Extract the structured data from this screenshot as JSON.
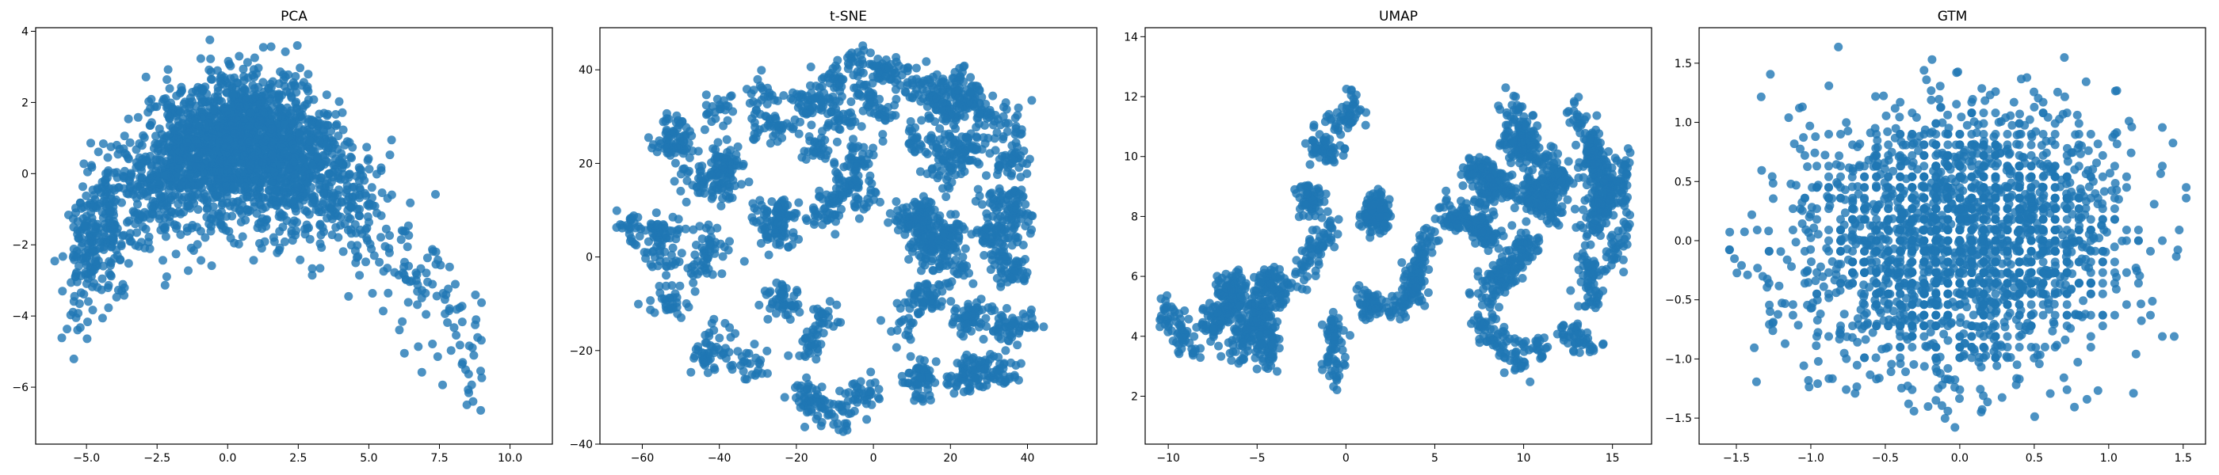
{
  "figure": {
    "background": "#ffffff"
  },
  "chart_data": [
    {
      "type": "scatter",
      "title": "PCA",
      "xlabel": "",
      "ylabel": "",
      "xlim": [
        -6.8,
        11.5
      ],
      "ylim": [
        -7.6,
        4.1
      ],
      "xticks": [
        -5.0,
        -2.5,
        0.0,
        2.5,
        5.0,
        7.5,
        10.0
      ],
      "xtick_labels": [
        "−5.0",
        "−2.5",
        "0.0",
        "2.5",
        "5.0",
        "7.5",
        "10.0"
      ],
      "yticks": [
        -6,
        -4,
        -2,
        0,
        2,
        4
      ],
      "ytick_labels": [
        "−6",
        "−4",
        "−2",
        "0",
        "2",
        "4"
      ],
      "grid": false,
      "series": [
        {
          "color": "#1f77b4",
          "n_points": 2500,
          "distribution": "arc"
        }
      ]
    },
    {
      "type": "scatter",
      "title": "t-SNE",
      "xlabel": "",
      "ylabel": "",
      "xlim": [
        -71,
        58
      ],
      "ylim": [
        -40,
        49
      ],
      "xticks": [
        -60,
        -40,
        -20,
        0,
        20,
        40
      ],
      "xtick_labels": [
        "−60",
        "−40",
        "−20",
        "0",
        "20",
        "40"
      ],
      "yticks": [
        -40,
        -20,
        0,
        20,
        40
      ],
      "ytick_labels": [
        "−40",
        "−20",
        "0",
        "20",
        "40"
      ],
      "grid": false,
      "series": [
        {
          "color": "#1f77b4",
          "n_points": 2500,
          "distribution": "clusters"
        }
      ]
    },
    {
      "type": "scatter",
      "title": "UMAP",
      "xlabel": "",
      "ylabel": "",
      "xlim": [
        -11.3,
        17.2
      ],
      "ylim": [
        0.4,
        14.3
      ],
      "xticks": [
        -10,
        -5,
        0,
        5,
        10,
        15
      ],
      "xtick_labels": [
        "−10",
        "−5",
        "0",
        "5",
        "10",
        "15"
      ],
      "yticks": [
        2,
        4,
        6,
        8,
        10,
        12,
        14
      ],
      "ytick_labels": [
        "2",
        "4",
        "6",
        "8",
        "10",
        "12",
        "14"
      ],
      "grid": false,
      "series": [
        {
          "color": "#1f77b4",
          "n_points": 2500,
          "distribution": "strands"
        }
      ]
    },
    {
      "type": "scatter",
      "title": "GTM",
      "xlabel": "",
      "ylabel": "",
      "xlim": [
        -1.75,
        1.65
      ],
      "ylim": [
        -1.72,
        1.8
      ],
      "xticks": [
        -1.5,
        -1.0,
        -0.5,
        0.0,
        0.5,
        1.0,
        1.5
      ],
      "xtick_labels": [
        "−1.5",
        "−1.0",
        "−0.5",
        "0.0",
        "0.5",
        "1.0",
        "1.5"
      ],
      "yticks": [
        -1.5,
        -1.0,
        -0.5,
        0.0,
        0.5,
        1.0,
        1.5
      ],
      "ytick_labels": [
        "−1.5",
        "−1.0",
        "−0.5",
        "0.0",
        "0.5",
        "1.0",
        "1.5"
      ],
      "grid": false,
      "series": [
        {
          "color": "#1f77b4",
          "n_points": 2500,
          "distribution": "grid"
        }
      ]
    }
  ]
}
